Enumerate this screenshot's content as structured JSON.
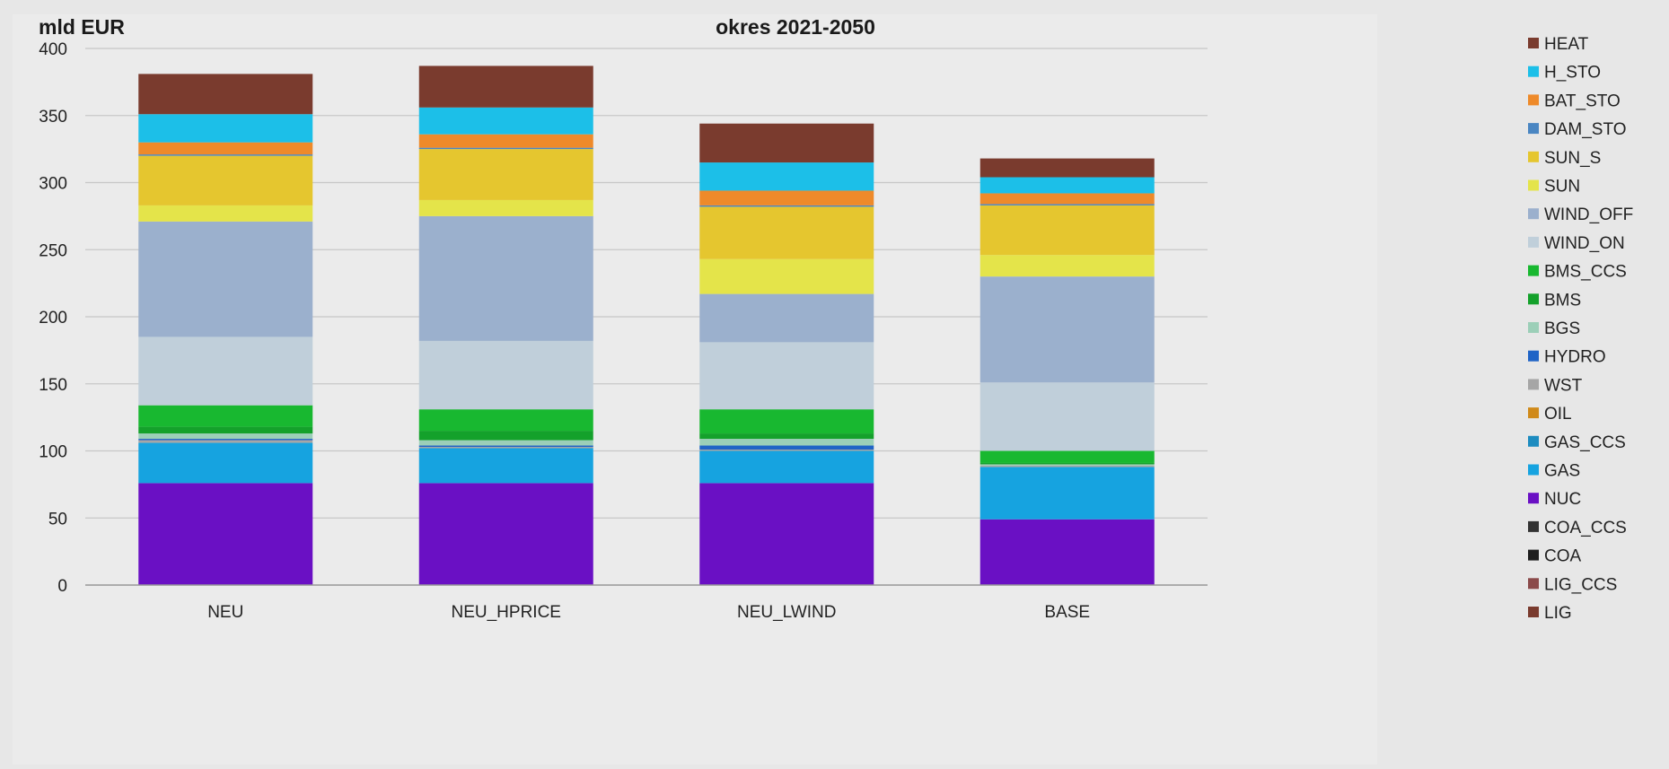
{
  "chart_data": {
    "type": "bar",
    "stacked": true,
    "title": "okres 2021-2050",
    "ylabel": "mld EUR",
    "xlabel": "",
    "ylim": [
      0,
      400
    ],
    "yticks": [
      0,
      50,
      100,
      150,
      200,
      250,
      300,
      350,
      400
    ],
    "grid": true,
    "legend_position": "right",
    "categories": [
      "NEU",
      "NEU_HPRICE",
      "NEU_LWIND",
      "BASE"
    ],
    "series": [
      {
        "name": "LIG",
        "color": "#7a3b2e",
        "values": [
          0,
          0,
          0,
          0
        ]
      },
      {
        "name": "LIG_CCS",
        "color": "#8b4a4a",
        "values": [
          0,
          0,
          0,
          0
        ]
      },
      {
        "name": "COA",
        "color": "#1e1e1e",
        "values": [
          0,
          0,
          0,
          0
        ]
      },
      {
        "name": "COA_CCS",
        "color": "#333333",
        "values": [
          0,
          0,
          0,
          0
        ]
      },
      {
        "name": "NUC",
        "color": "#6a10c4",
        "values": [
          76,
          76,
          76,
          49
        ]
      },
      {
        "name": "GAS",
        "color": "#16a3e0",
        "values": [
          30,
          26,
          24,
          39
        ]
      },
      {
        "name": "GAS_CCS",
        "color": "#1d8cc0",
        "values": [
          0,
          0,
          0,
          0
        ]
      },
      {
        "name": "OIL",
        "color": "#d08a1a",
        "values": [
          0,
          0,
          0,
          0
        ]
      },
      {
        "name": "WST",
        "color": "#a6a6a6",
        "values": [
          2,
          1,
          1,
          1
        ]
      },
      {
        "name": "HYDRO",
        "color": "#2064c6",
        "values": [
          1,
          1,
          3,
          0
        ]
      },
      {
        "name": "BGS",
        "color": "#9ccfb8",
        "values": [
          4,
          4,
          5,
          1
        ]
      },
      {
        "name": "BMS",
        "color": "#14a12b",
        "values": [
          5,
          7,
          4,
          1
        ]
      },
      {
        "name": "BMS_CCS",
        "color": "#18b830",
        "values": [
          16,
          16,
          18,
          9
        ]
      },
      {
        "name": "WIND_ON",
        "color": "#c0cfda",
        "values": [
          51,
          51,
          50,
          51
        ]
      },
      {
        "name": "WIND_OFF",
        "color": "#9bb0cd",
        "values": [
          86,
          93,
          36,
          79
        ]
      },
      {
        "name": "SUN",
        "color": "#e4e44a",
        "values": [
          12,
          12,
          26,
          16
        ]
      },
      {
        "name": "SUN_S",
        "color": "#e5c62f",
        "values": [
          37,
          38,
          39,
          37
        ]
      },
      {
        "name": "DAM_STO",
        "color": "#4a86c2",
        "values": [
          1,
          1,
          1,
          1
        ]
      },
      {
        "name": "BAT_STO",
        "color": "#ee8a2a",
        "values": [
          9,
          10,
          11,
          8
        ]
      },
      {
        "name": "H_STO",
        "color": "#1cbfe8",
        "values": [
          21,
          20,
          21,
          12
        ]
      },
      {
        "name": "HEAT",
        "color": "#7a3b2e",
        "values": [
          30,
          31,
          29,
          14
        ]
      }
    ]
  }
}
